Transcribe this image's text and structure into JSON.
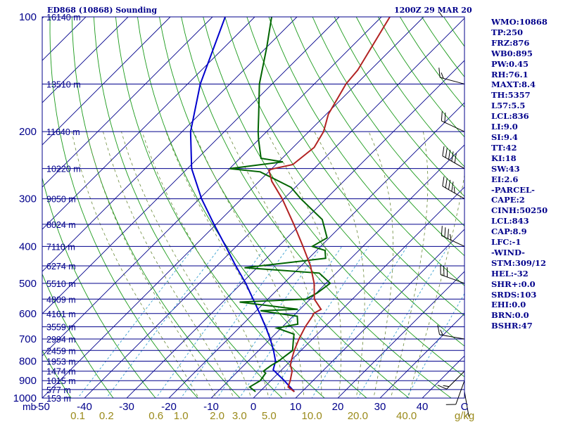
{
  "header": {
    "station": "ED868 (10868) Sounding",
    "time": "1200Z 29 MAR 20"
  },
  "indices": [
    "WMO:10868",
    "TP:250",
    "FRZ:876",
    "WB0:895",
    "PW:0.45",
    "RH:76.1",
    "MAXT:8.4",
    "TH:5357",
    "L57:5.5",
    "LCL:836",
    "LI:9.0",
    "SI:9.4",
    "TT:42",
    "KI:18",
    "SW:43",
    "EI:2.6",
    "-PARCEL-",
    "CAPE:2",
    "CINH:50250",
    "LCL:843",
    "CAP:8.9",
    "LFC:-1",
    "-WIND-",
    "STM:309/12",
    "HEL:-32",
    "SHR+:0.0",
    "SRDS:103",
    "EHI:0.0",
    "BRN:0.0",
    "BSHR:47"
  ],
  "colors": {
    "isobar": "#00008b",
    "temperature": "#b22222",
    "dewpoint": "#006400",
    "parcel": "#0000cd",
    "mixing_ratio": "#3aa0d0",
    "dry_adiabat": "#1a9a1a",
    "moist_adiabat": "#6a8a3a",
    "wind": "#000000",
    "text": "#00008b",
    "mr_text": "#9a8a1a"
  },
  "chart_data": {
    "type": "skew-t",
    "pressure_axis": {
      "unit": "mb",
      "scale": "log",
      "range": [
        1000,
        100
      ],
      "tick_labels": [
        "100",
        "200",
        "300",
        "400",
        "500",
        "600",
        "700",
        "800",
        "900",
        "1000"
      ]
    },
    "temperature_axis": {
      "range": [
        -50,
        50
      ],
      "tick_labels": [
        "-50",
        "-40",
        "-30",
        "-20",
        "-10",
        "0",
        "10",
        "20",
        "30",
        "40",
        "C"
      ]
    },
    "mixing_ratio_labels": [
      "0.1",
      "0.2",
      "0.6",
      "1.0",
      "2.0",
      "3.0",
      "5.0",
      "10.0",
      "20.0",
      "40.0",
      "g/kg"
    ],
    "heights": [
      {
        "p": 100,
        "label": "16140 m"
      },
      {
        "p": 150,
        "label": "13510 m"
      },
      {
        "p": 200,
        "label": "11640 m"
      },
      {
        "p": 250,
        "label": "10220 m"
      },
      {
        "p": 300,
        "label": "9050 m"
      },
      {
        "p": 350,
        "label": "8024 m"
      },
      {
        "p": 400,
        "label": "7110 m"
      },
      {
        "p": 450,
        "label": "6274 m"
      },
      {
        "p": 500,
        "label": "5510 m"
      },
      {
        "p": 550,
        "label": "4809 m"
      },
      {
        "p": 600,
        "label": "4161 m"
      },
      {
        "p": 650,
        "label": "3559 m"
      },
      {
        "p": 700,
        "label": "2994 m"
      },
      {
        "p": 750,
        "label": "2459 m"
      },
      {
        "p": 800,
        "label": "1953 m"
      },
      {
        "p": 850,
        "label": "1474 m"
      },
      {
        "p": 900,
        "label": "1015 m"
      },
      {
        "p": 950,
        "label": "577 m"
      },
      {
        "p": 1000,
        "label": "153 m"
      }
    ],
    "temperature": [
      [
        962,
        8.2
      ],
      [
        935,
        5.6
      ],
      [
        900,
        4.6
      ],
      [
        850,
        2.8
      ],
      [
        820,
        1.0
      ],
      [
        800,
        0.2
      ],
      [
        750,
        -1.6
      ],
      [
        700,
        -3.2
      ],
      [
        650,
        -4.6
      ],
      [
        610,
        -5.4
      ],
      [
        600,
        -5.8
      ],
      [
        585,
        -5.0
      ],
      [
        550,
        -9.0
      ],
      [
        500,
        -12.8
      ],
      [
        450,
        -17.8
      ],
      [
        400,
        -24.2
      ],
      [
        350,
        -31.6
      ],
      [
        300,
        -40.4
      ],
      [
        270,
        -47.0
      ],
      [
        252,
        -50.4
      ],
      [
        250,
        -49.5
      ],
      [
        244,
        -46.0
      ],
      [
        220,
        -45.0
      ],
      [
        200,
        -46.5
      ],
      [
        180,
        -49.5
      ],
      [
        150,
        -52.5
      ],
      [
        138,
        -53.0
      ],
      [
        100,
        -58.0
      ]
    ],
    "dewpoint": [
      [
        962,
        -1.0
      ],
      [
        935,
        -3.5
      ],
      [
        900,
        -2.5
      ],
      [
        860,
        -3.0
      ],
      [
        850,
        -4.0
      ],
      [
        820,
        -3.5
      ],
      [
        800,
        -2.8
      ],
      [
        750,
        -2.0
      ],
      [
        700,
        -4.5
      ],
      [
        680,
        -5.5
      ],
      [
        655,
        -11.0
      ],
      [
        640,
        -7.0
      ],
      [
        610,
        -9.0
      ],
      [
        600,
        -14.0
      ],
      [
        590,
        -19.0
      ],
      [
        585,
        -10.5
      ],
      [
        560,
        -26.0
      ],
      [
        550,
        -11.0
      ],
      [
        530,
        -9.8
      ],
      [
        500,
        -9.0
      ],
      [
        470,
        -14.0
      ],
      [
        455,
        -33.0
      ],
      [
        430,
        -16.0
      ],
      [
        410,
        -18.0
      ],
      [
        400,
        -22.0
      ],
      [
        380,
        -20.5
      ],
      [
        340,
        -26.0
      ],
      [
        300,
        -36.0
      ],
      [
        280,
        -41.0
      ],
      [
        255,
        -52.0
      ],
      [
        250,
        -60.0
      ],
      [
        240,
        -49.0
      ],
      [
        235,
        -55.0
      ],
      [
        210,
        -60.0
      ],
      [
        200,
        -62.0
      ],
      [
        180,
        -66.0
      ],
      [
        150,
        -73.0
      ],
      [
        120,
        -80.0
      ],
      [
        100,
        -86.0
      ]
    ],
    "parcel": [
      [
        962,
        8.2
      ],
      [
        900,
        3.2
      ],
      [
        843,
        -2.0
      ],
      [
        800,
        -3.5
      ],
      [
        750,
        -6.5
      ],
      [
        700,
        -10.0
      ],
      [
        650,
        -14.0
      ],
      [
        600,
        -18.5
      ],
      [
        550,
        -23.5
      ],
      [
        500,
        -29.0
      ],
      [
        450,
        -35.5
      ],
      [
        400,
        -42.5
      ],
      [
        350,
        -50.5
      ],
      [
        300,
        -59.5
      ],
      [
        250,
        -69.0
      ],
      [
        200,
        -78.0
      ],
      [
        150,
        -87.0
      ],
      [
        100,
        -97.0
      ]
    ],
    "wind": [
      {
        "p": 962,
        "dir": 170,
        "spd": 5
      },
      {
        "p": 900,
        "dir": 200,
        "spd": 10
      },
      {
        "p": 850,
        "dir": 225,
        "spd": 15
      },
      {
        "p": 700,
        "dir": 280,
        "spd": 15
      },
      {
        "p": 500,
        "dir": 290,
        "spd": 30
      },
      {
        "p": 400,
        "dir": 295,
        "spd": 35
      },
      {
        "p": 300,
        "dir": 300,
        "spd": 45
      },
      {
        "p": 250,
        "dir": 300,
        "spd": 50
      },
      {
        "p": 200,
        "dir": 295,
        "spd": 20
      },
      {
        "p": 150,
        "dir": 285,
        "spd": 15
      },
      {
        "p": 100,
        "dir": 270,
        "spd": 5
      }
    ]
  }
}
